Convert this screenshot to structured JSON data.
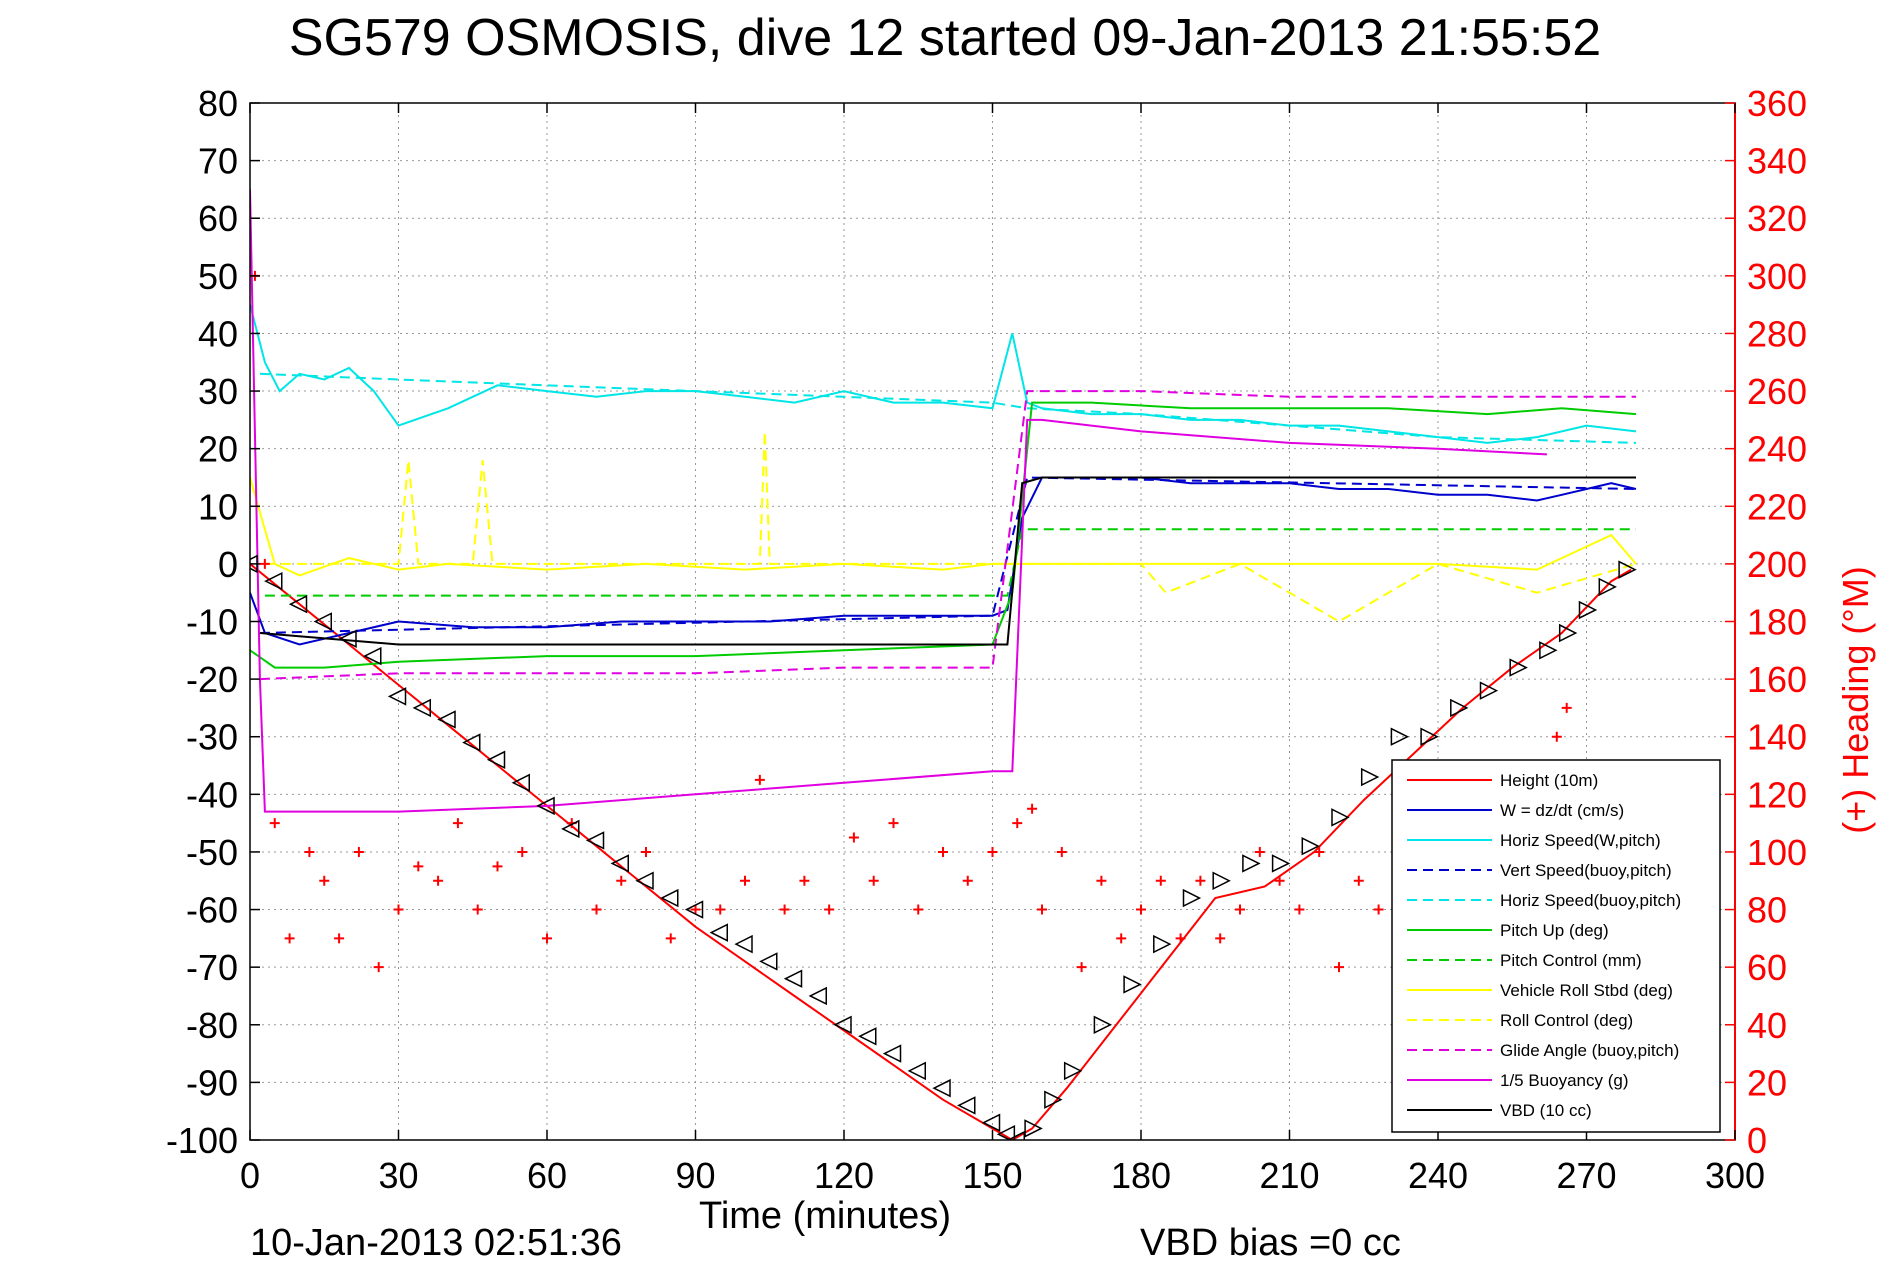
{
  "footer_left": "10-Jan-2013 02:51:36",
  "footer_right": "VBD bias =0 cc",
  "chart_data": {
    "type": "line",
    "title": "SG579 OSMOSIS, dive 12 started 09-Jan-2013 21:55:52",
    "xlabel": "Time (minutes)",
    "ylabel": "",
    "y2label": "(+) Heading (°M)",
    "xlim": [
      0,
      300
    ],
    "ylim": [
      -100,
      80
    ],
    "y2lim": [
      0,
      360
    ],
    "x_ticks": [
      0,
      30,
      60,
      90,
      120,
      150,
      180,
      210,
      240,
      270,
      300
    ],
    "y_ticks": [
      80,
      70,
      60,
      50,
      40,
      30,
      20,
      10,
      0,
      -10,
      -20,
      -30,
      -40,
      -50,
      -60,
      -70,
      -80,
      -90,
      -100
    ],
    "y2_ticks": [
      360,
      340,
      320,
      300,
      280,
      260,
      240,
      220,
      200,
      180,
      160,
      140,
      120,
      100,
      80,
      60,
      40,
      20,
      0
    ],
    "grid": true,
    "legend_position": "bottom-right",
    "colors": {
      "height": "#ff0000",
      "w": "#0000cc",
      "horiz_speed": "#00e5e5",
      "pitch": "#00cc00",
      "roll": "#ffff00",
      "glide": "#e000e0",
      "vbd": "#000000",
      "heading_axis": "#ff0000"
    },
    "series": [
      {
        "name": "Height (10m)",
        "color": "#ff0000",
        "dash": "solid",
        "x": [
          0,
          10,
          20,
          30,
          40,
          50,
          60,
          70,
          80,
          90,
          100,
          110,
          120,
          130,
          140,
          150,
          154,
          158,
          165,
          175,
          185,
          195,
          205,
          215,
          225,
          235,
          245,
          255,
          265,
          275,
          279
        ],
        "y": [
          0,
          -7,
          -14,
          -21,
          -28,
          -35,
          -42,
          -49,
          -56,
          -63,
          -69,
          -75,
          -81,
          -87,
          -93,
          -98,
          -100,
          -98,
          -91,
          -80,
          -69,
          -58,
          -56,
          -50,
          -41,
          -33,
          -25,
          -18,
          -12,
          -3,
          -1
        ]
      },
      {
        "name": "W = dz/dt (cm/s)",
        "color": "#0000cc",
        "dash": "solid",
        "x": [
          0,
          3,
          10,
          20,
          30,
          45,
          60,
          75,
          90,
          105,
          120,
          135,
          150,
          153,
          156,
          160,
          170,
          180,
          190,
          200,
          210,
          220,
          230,
          240,
          250,
          260,
          265,
          270,
          275,
          280
        ],
        "y": [
          -5,
          -12,
          -14,
          -12,
          -10,
          -11,
          -11,
          -10,
          -10,
          -10,
          -9,
          -9,
          -9,
          -8,
          8,
          15,
          15,
          15,
          14,
          14,
          14,
          13,
          13,
          12,
          12,
          11,
          12,
          13,
          14,
          13
        ]
      },
      {
        "name": "Horiz Speed(W,pitch)",
        "color": "#00e5e5",
        "dash": "solid",
        "x": [
          0,
          3,
          6,
          10,
          15,
          20,
          25,
          30,
          40,
          50,
          60,
          70,
          80,
          90,
          100,
          110,
          120,
          130,
          140,
          150,
          154,
          157,
          160,
          170,
          180,
          190,
          200,
          210,
          220,
          230,
          240,
          250,
          260,
          270,
          280
        ],
        "y": [
          45,
          35,
          30,
          33,
          32,
          34,
          30,
          24,
          27,
          31,
          30,
          29,
          30,
          30,
          29,
          28,
          30,
          28,
          28,
          27,
          40,
          28,
          27,
          26,
          26,
          25,
          25,
          24,
          24,
          23,
          22,
          21,
          22,
          24,
          23
        ]
      },
      {
        "name": "Vert Speed(buoy,pitch)",
        "color": "#0000cc",
        "dash": "dashed",
        "x": [
          2,
          150,
          157,
          280
        ],
        "y": [
          -12,
          -9,
          15,
          13
        ]
      },
      {
        "name": "Horiz Speed(buoy,pitch)",
        "color": "#00e5e5",
        "dash": "dashed",
        "x": [
          2,
          30,
          60,
          90,
          120,
          150,
          157,
          180,
          210,
          240,
          280
        ],
        "y": [
          33,
          32,
          31,
          30,
          29,
          28,
          27,
          26,
          24,
          22,
          21
        ]
      },
      {
        "name": "Pitch Up (deg)",
        "color": "#00cc00",
        "dash": "solid",
        "x": [
          0,
          5,
          15,
          30,
          60,
          90,
          120,
          150,
          154,
          158,
          170,
          190,
          210,
          230,
          250,
          265,
          280
        ],
        "y": [
          -15,
          -18,
          -18,
          -17,
          -16,
          -16,
          -15,
          -14,
          -5,
          28,
          28,
          27,
          27,
          27,
          26,
          27,
          26
        ]
      },
      {
        "name": "Pitch Control (mm)",
        "color": "#00cc00",
        "dash": "dashed",
        "x": [
          3,
          153,
          156,
          280
        ],
        "y": [
          -5.5,
          -5.5,
          6,
          6
        ]
      },
      {
        "name": "Vehicle Roll Stbd (deg)",
        "color": "#ffff00",
        "dash": "solid",
        "x": [
          0,
          5,
          10,
          20,
          30,
          40,
          60,
          80,
          100,
          120,
          140,
          150,
          154,
          158,
          165,
          180,
          200,
          220,
          240,
          260,
          270,
          275,
          280
        ],
        "y": [
          15,
          0,
          -2,
          1,
          -1,
          0,
          -1,
          0,
          -1,
          0,
          -1,
          0,
          0,
          0,
          0,
          0,
          0,
          0,
          0,
          -1,
          3,
          5,
          0
        ]
      },
      {
        "name": "Roll Control (deg)",
        "color": "#ffff00",
        "dash": "dashed",
        "x": [
          3,
          30,
          32,
          34,
          45,
          47,
          49,
          60,
          90,
          103,
          104,
          105,
          120,
          150,
          160,
          180,
          185,
          200,
          220,
          240,
          260,
          280
        ],
        "y": [
          0,
          0,
          18,
          0,
          0,
          18,
          0,
          0,
          0,
          0,
          23,
          0,
          0,
          0,
          0,
          0,
          -5,
          0,
          -10,
          0,
          -5,
          0
        ]
      },
      {
        "name": "Glide Angle (buoy,pitch)",
        "color": "#e000e0",
        "dash": "dashed",
        "x": [
          2,
          30,
          60,
          90,
          120,
          150,
          157,
          180,
          210,
          240,
          280
        ],
        "y": [
          -20,
          -19,
          -19,
          -19,
          -18,
          -18,
          30,
          30,
          29,
          29,
          29
        ]
      },
      {
        "name": "1/5 Buoyancy (g)",
        "color": "#e000e0",
        "dash": "solid",
        "x": [
          0,
          2,
          3,
          30,
          60,
          90,
          120,
          150,
          154,
          157,
          160,
          180,
          210,
          240,
          262
        ],
        "y": [
          65,
          -20,
          -43,
          -43,
          -42,
          -40,
          -38,
          -36,
          -36,
          25,
          25,
          23,
          21,
          20,
          19
        ]
      },
      {
        "name": "VBD (10 cc)",
        "color": "#000000",
        "dash": "solid",
        "x": [
          2,
          30,
          60,
          90,
          120,
          150,
          153,
          156,
          160,
          280
        ],
        "y": [
          -12,
          -14,
          -14,
          -14,
          -14,
          -14,
          -14,
          14,
          15,
          15
        ]
      }
    ],
    "heading_series": {
      "name": "Heading",
      "axis": "right",
      "color": "#ff0000",
      "marker": "+",
      "x": [
        1,
        3,
        5,
        8,
        12,
        15,
        18,
        22,
        26,
        30,
        34,
        38,
        42,
        46,
        50,
        55,
        60,
        65,
        70,
        75,
        80,
        85,
        90,
        95,
        100,
        103,
        108,
        112,
        117,
        122,
        126,
        130,
        135,
        140,
        145,
        150,
        155,
        158,
        160,
        164,
        168,
        172,
        176,
        180,
        184,
        188,
        192,
        196,
        200,
        204,
        208,
        212,
        216,
        220,
        224,
        228,
        232,
        236,
        240,
        244,
        248,
        252,
        256,
        260,
        264,
        266,
        268,
        270
      ],
      "y": [
        300,
        200,
        110,
        70,
        100,
        90,
        70,
        100,
        60,
        80,
        95,
        90,
        110,
        80,
        95,
        100,
        70,
        110,
        80,
        90,
        100,
        70,
        80,
        80,
        90,
        125,
        80,
        90,
        80,
        105,
        90,
        110,
        80,
        100,
        90,
        100,
        110,
        115,
        80,
        100,
        60,
        90,
        70,
        80,
        90,
        70,
        90,
        70,
        80,
        100,
        90,
        80,
        100,
        60,
        90,
        80,
        90,
        80,
        90,
        80,
        90,
        80,
        85,
        80,
        140,
        150,
        80,
        80
      ]
    },
    "vbd_markers": {
      "name": "VBD bias markers",
      "marker": "triangle",
      "color": "#000000",
      "x": [
        0,
        5,
        10,
        15,
        20,
        25,
        30,
        35,
        40,
        45,
        50,
        55,
        60,
        65,
        70,
        75,
        80,
        85,
        90,
        95,
        100,
        105,
        110,
        115,
        120,
        125,
        130,
        135,
        140,
        145,
        150,
        153,
        155,
        158,
        162,
        166,
        172,
        178,
        184,
        190,
        196,
        202,
        208,
        214,
        220,
        226,
        232,
        238,
        244,
        250,
        256,
        262,
        266,
        270,
        274,
        278
      ],
      "y": [
        0,
        -3,
        -7,
        -10,
        -13,
        -16,
        -23,
        -25,
        -27,
        -31,
        -34,
        -38,
        -42,
        -46,
        -48,
        -52,
        -55,
        -58,
        -60,
        -64,
        -66,
        -69,
        -72,
        -75,
        -80,
        -82,
        -85,
        -88,
        -91,
        -94,
        -97,
        -99,
        -100,
        -98,
        -93,
        -88,
        -80,
        -73,
        -66,
        -58,
        -55,
        -52,
        -52,
        -49,
        -44,
        -37,
        -30,
        -30,
        -25,
        -22,
        -18,
        -15,
        -12,
        -8,
        -4,
        -1
      ]
    }
  }
}
